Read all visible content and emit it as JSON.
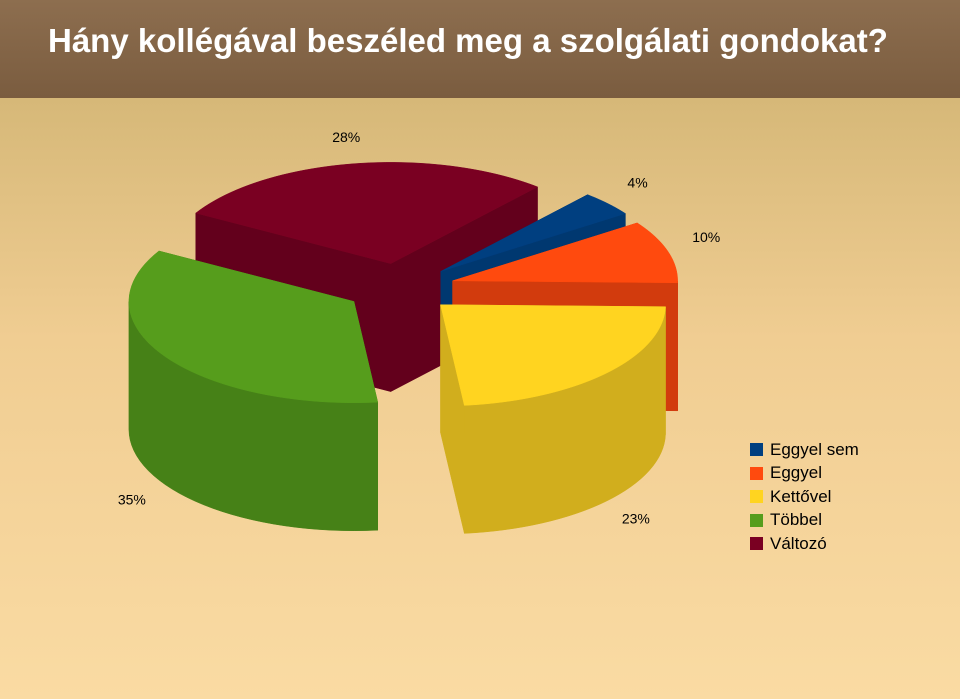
{
  "header": {
    "title": "Hány kollégával beszéled meg a szolgálati gondokat?"
  },
  "chart_data": {
    "type": "pie",
    "style": "3d-exploded",
    "legend_position": "right",
    "series": [
      {
        "name": "Eggyel sem",
        "value": 4,
        "label": "4%",
        "color": "#003f80",
        "side": "#003870"
      },
      {
        "name": "Eggyel",
        "value": 10,
        "label": "10%",
        "color": "#ff4a0e",
        "side": "#d23b0d"
      },
      {
        "name": "Kettővel",
        "value": 23,
        "label": "23%",
        "color": "#ffd420",
        "side": "#d1ae1d"
      },
      {
        "name": "Többel",
        "value": 35,
        "label": "35%",
        "color": "#569d1c",
        "side": "#468117"
      },
      {
        "name": "Változó",
        "value": 28,
        "label": "28%",
        "color": "#7a0022",
        "side": "#63001c"
      }
    ]
  }
}
